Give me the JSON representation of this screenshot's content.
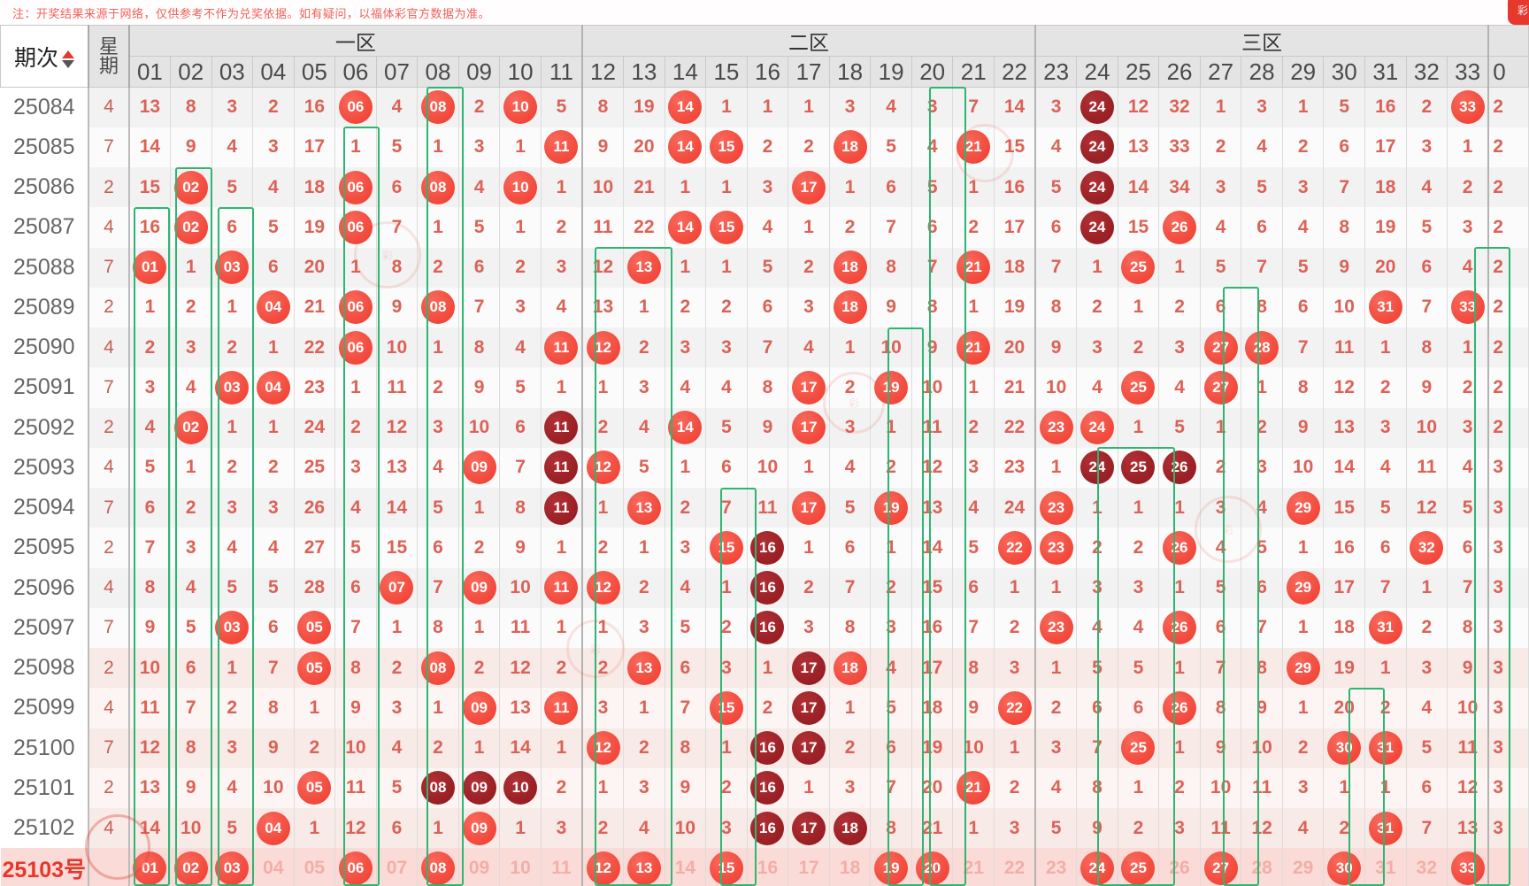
{
  "note": "注：开奖结果来源于网络，仅供参考不作为兑奖依据。如有疑问，以福体彩官方数据为准。",
  "header": {
    "issue_label": "期次",
    "week_label": "星期",
    "zones": [
      {
        "label": "一区",
        "cols": 11
      },
      {
        "label": "二区",
        "cols": 11
      },
      {
        "label": "三区",
        "cols": 11
      }
    ],
    "numbers": [
      "01",
      "02",
      "03",
      "04",
      "05",
      "06",
      "07",
      "08",
      "09",
      "10",
      "11",
      "12",
      "13",
      "14",
      "15",
      "16",
      "17",
      "18",
      "19",
      "20",
      "21",
      "22",
      "23",
      "24",
      "25",
      "26",
      "27",
      "28",
      "29",
      "30",
      "31",
      "32",
      "33"
    ],
    "partial_col_header": "0"
  },
  "cell_encoding": {
    "plain": "miss count (periods since number last drawn)",
    "B##": "drawn number shown as bright red ball",
    "D##": "drawn number shown as dark maroon ball (streak / consecutive run)",
    "P##": "pending-row red ball (tracked column)",
    "F##": "pending-row faded preview number"
  },
  "rows": [
    {
      "issue": "25084",
      "week": "4",
      "cells": [
        "13",
        "8",
        "3",
        "2",
        "16",
        "B06",
        "4",
        "B08",
        "2",
        "B10",
        "5",
        "8",
        "19",
        "B14",
        "1",
        "1",
        "1",
        "3",
        "4",
        "3",
        "7",
        "14",
        "3",
        "D24",
        "12",
        "32",
        "1",
        "3",
        "1",
        "5",
        "16",
        "2",
        "B33"
      ],
      "extra": "2"
    },
    {
      "issue": "25085",
      "week": "7",
      "cells": [
        "14",
        "9",
        "4",
        "3",
        "17",
        "1",
        "5",
        "1",
        "3",
        "1",
        "B11",
        "9",
        "20",
        "B14",
        "B15",
        "2",
        "2",
        "B18",
        "5",
        "4",
        "B21",
        "15",
        "4",
        "D24",
        "13",
        "33",
        "2",
        "4",
        "2",
        "6",
        "17",
        "3",
        "1"
      ],
      "extra": "2"
    },
    {
      "issue": "25086",
      "week": "2",
      "cells": [
        "15",
        "B02",
        "5",
        "4",
        "18",
        "B06",
        "6",
        "B08",
        "4",
        "B10",
        "1",
        "10",
        "21",
        "1",
        "1",
        "3",
        "B17",
        "1",
        "6",
        "5",
        "1",
        "16",
        "5",
        "D24",
        "14",
        "34",
        "3",
        "5",
        "3",
        "7",
        "18",
        "4",
        "2"
      ],
      "extra": "2"
    },
    {
      "issue": "25087",
      "week": "4",
      "cells": [
        "16",
        "B02",
        "6",
        "5",
        "19",
        "B06",
        "7",
        "1",
        "5",
        "1",
        "2",
        "11",
        "22",
        "B14",
        "B15",
        "4",
        "1",
        "2",
        "7",
        "6",
        "2",
        "17",
        "6",
        "D24",
        "15",
        "B26",
        "4",
        "6",
        "4",
        "8",
        "19",
        "5",
        "3"
      ],
      "extra": "2"
    },
    {
      "issue": "25088",
      "week": "7",
      "cells": [
        "B01",
        "1",
        "B03",
        "6",
        "20",
        "1",
        "8",
        "2",
        "6",
        "2",
        "3",
        "12",
        "B13",
        "1",
        "1",
        "5",
        "2",
        "B18",
        "8",
        "7",
        "B21",
        "18",
        "7",
        "1",
        "B25",
        "1",
        "5",
        "7",
        "5",
        "9",
        "20",
        "6",
        "4"
      ],
      "extra": "2"
    },
    {
      "issue": "25089",
      "week": "2",
      "cells": [
        "1",
        "2",
        "1",
        "B04",
        "21",
        "B06",
        "9",
        "B08",
        "7",
        "3",
        "4",
        "13",
        "1",
        "2",
        "2",
        "6",
        "3",
        "B18",
        "9",
        "8",
        "1",
        "19",
        "8",
        "2",
        "1",
        "2",
        "6",
        "8",
        "6",
        "10",
        "B31",
        "7",
        "B33"
      ],
      "extra": "2"
    },
    {
      "issue": "25090",
      "week": "4",
      "cells": [
        "2",
        "3",
        "2",
        "1",
        "22",
        "B06",
        "10",
        "1",
        "8",
        "4",
        "B11",
        "B12",
        "2",
        "3",
        "3",
        "7",
        "4",
        "1",
        "10",
        "9",
        "B21",
        "20",
        "9",
        "3",
        "2",
        "3",
        "B27",
        "B28",
        "7",
        "11",
        "1",
        "8",
        "1"
      ],
      "extra": "2"
    },
    {
      "issue": "25091",
      "week": "7",
      "cells": [
        "3",
        "4",
        "B03",
        "B04",
        "23",
        "1",
        "11",
        "2",
        "9",
        "5",
        "1",
        "1",
        "3",
        "4",
        "4",
        "8",
        "B17",
        "2",
        "B19",
        "10",
        "1",
        "21",
        "10",
        "4",
        "B25",
        "4",
        "B27",
        "1",
        "8",
        "12",
        "2",
        "9",
        "2"
      ],
      "extra": "2"
    },
    {
      "issue": "25092",
      "week": "2",
      "cells": [
        "4",
        "B02",
        "1",
        "1",
        "24",
        "2",
        "12",
        "3",
        "10",
        "6",
        "D11",
        "2",
        "4",
        "B14",
        "5",
        "9",
        "B17",
        "3",
        "1",
        "11",
        "2",
        "22",
        "B23",
        "B24",
        "1",
        "5",
        "1",
        "2",
        "9",
        "13",
        "3",
        "10",
        "3"
      ],
      "extra": "2"
    },
    {
      "issue": "25093",
      "week": "4",
      "cells": [
        "5",
        "1",
        "2",
        "2",
        "25",
        "3",
        "13",
        "4",
        "B09",
        "7",
        "D11",
        "B12",
        "5",
        "1",
        "6",
        "10",
        "1",
        "4",
        "2",
        "12",
        "3",
        "23",
        "1",
        "D24",
        "D25",
        "D26",
        "2",
        "3",
        "10",
        "14",
        "4",
        "11",
        "4"
      ],
      "extra": "3"
    },
    {
      "issue": "25094",
      "week": "7",
      "cells": [
        "6",
        "2",
        "3",
        "3",
        "26",
        "4",
        "14",
        "5",
        "1",
        "8",
        "D11",
        "1",
        "B13",
        "2",
        "7",
        "11",
        "B17",
        "5",
        "B19",
        "13",
        "4",
        "24",
        "B23",
        "1",
        "1",
        "1",
        "3",
        "4",
        "B29",
        "15",
        "5",
        "12",
        "5"
      ],
      "extra": "3"
    },
    {
      "issue": "25095",
      "week": "2",
      "cells": [
        "7",
        "3",
        "4",
        "4",
        "27",
        "5",
        "15",
        "6",
        "2",
        "9",
        "1",
        "2",
        "1",
        "3",
        "B15",
        "D16",
        "1",
        "6",
        "1",
        "14",
        "5",
        "B22",
        "B23",
        "2",
        "2",
        "B26",
        "4",
        "5",
        "1",
        "16",
        "6",
        "B32",
        "6"
      ],
      "extra": "3"
    },
    {
      "issue": "25096",
      "week": "4",
      "cells": [
        "8",
        "4",
        "5",
        "5",
        "28",
        "6",
        "B07",
        "7",
        "B09",
        "10",
        "B11",
        "B12",
        "2",
        "4",
        "1",
        "D16",
        "2",
        "7",
        "2",
        "15",
        "6",
        "1",
        "1",
        "3",
        "3",
        "1",
        "5",
        "6",
        "B29",
        "17",
        "7",
        "1",
        "7"
      ],
      "extra": "3"
    },
    {
      "issue": "25097",
      "week": "7",
      "cells": [
        "9",
        "5",
        "B03",
        "6",
        "B05",
        "7",
        "1",
        "8",
        "1",
        "11",
        "1",
        "1",
        "3",
        "5",
        "2",
        "D16",
        "3",
        "8",
        "3",
        "16",
        "7",
        "2",
        "B23",
        "4",
        "4",
        "B26",
        "6",
        "7",
        "1",
        "18",
        "B31",
        "2",
        "8"
      ],
      "extra": "3"
    },
    {
      "issue": "25098",
      "week": "2",
      "cells": [
        "10",
        "6",
        "1",
        "7",
        "B05",
        "8",
        "2",
        "B08",
        "2",
        "12",
        "2",
        "2",
        "B13",
        "6",
        "3",
        "1",
        "D17",
        "B18",
        "4",
        "17",
        "8",
        "3",
        "1",
        "5",
        "5",
        "1",
        "7",
        "8",
        "B29",
        "19",
        "1",
        "3",
        "9"
      ],
      "extra": "3"
    },
    {
      "issue": "25099",
      "week": "4",
      "cells": [
        "11",
        "7",
        "2",
        "8",
        "1",
        "9",
        "3",
        "1",
        "B09",
        "13",
        "B11",
        "3",
        "1",
        "7",
        "B15",
        "2",
        "D17",
        "1",
        "5",
        "18",
        "9",
        "B22",
        "2",
        "6",
        "6",
        "B26",
        "8",
        "9",
        "1",
        "20",
        "2",
        "4",
        "10"
      ],
      "extra": "3"
    },
    {
      "issue": "25100",
      "week": "7",
      "cells": [
        "12",
        "8",
        "3",
        "9",
        "2",
        "10",
        "4",
        "2",
        "1",
        "14",
        "1",
        "B12",
        "2",
        "8",
        "1",
        "D16",
        "D17",
        "2",
        "6",
        "19",
        "10",
        "1",
        "3",
        "7",
        "B25",
        "1",
        "9",
        "10",
        "2",
        "B30",
        "B31",
        "5",
        "11"
      ],
      "extra": "3"
    },
    {
      "issue": "25101",
      "week": "2",
      "cells": [
        "13",
        "9",
        "4",
        "10",
        "B05",
        "11",
        "5",
        "D08",
        "D09",
        "D10",
        "2",
        "1",
        "3",
        "9",
        "2",
        "D16",
        "1",
        "3",
        "7",
        "20",
        "B21",
        "2",
        "4",
        "8",
        "1",
        "2",
        "10",
        "11",
        "3",
        "1",
        "1",
        "6",
        "12"
      ],
      "extra": "3"
    },
    {
      "issue": "25102",
      "week": "4",
      "cells": [
        "14",
        "10",
        "5",
        "B04",
        "1",
        "12",
        "6",
        "1",
        "B09",
        "1",
        "3",
        "2",
        "4",
        "10",
        "3",
        "D16",
        "D17",
        "D18",
        "8",
        "21",
        "1",
        "3",
        "5",
        "9",
        "2",
        "3",
        "11",
        "12",
        "4",
        "2",
        "B31",
        "7",
        "13"
      ],
      "extra": "3"
    }
  ],
  "pending_row": {
    "issue": "25103号",
    "week": "",
    "cells": [
      "P01",
      "P02",
      "P03",
      "F04",
      "F05",
      "P06",
      "F07",
      "P08",
      "F09",
      "F10",
      "F11",
      "P12",
      "P13",
      "F14",
      "P15",
      "F16",
      "F17",
      "F18",
      "P19",
      "P20",
      "F21",
      "F22",
      "F23",
      "P24",
      "P25",
      "F26",
      "P27",
      "F28",
      "F29",
      "P30",
      "F31",
      "F32",
      "P33"
    ],
    "extra": ""
  },
  "highlight_boxes": [
    {
      "col": 8,
      "span": 1,
      "from_issue": "25084"
    },
    {
      "col": 20,
      "span": 1,
      "from_issue": "25084"
    },
    {
      "col": 6,
      "span": 1,
      "from_issue": "25085"
    },
    {
      "col": 2,
      "span": 1,
      "from_issue": "25086"
    },
    {
      "col": 1,
      "span": 1,
      "from_issue": "25087"
    },
    {
      "col": 3,
      "span": 1,
      "from_issue": "25087"
    },
    {
      "col": 12,
      "span": 2,
      "from_issue": "25088"
    },
    {
      "col": 33,
      "span": 1,
      "from_issue": "25088"
    },
    {
      "col": 27,
      "span": 1,
      "from_issue": "25089"
    },
    {
      "col": 19,
      "span": 1,
      "from_issue": "25090"
    },
    {
      "col": 24,
      "span": 2,
      "from_issue": "25093"
    },
    {
      "col": 15,
      "span": 1,
      "from_issue": "25094"
    },
    {
      "col": 30,
      "span": 1,
      "from_issue": "25099"
    }
  ],
  "colors": {
    "miss_text": "#db6257",
    "ball_bright": "#f14a3e",
    "ball_dark": "#9c2026",
    "highlight_box": "#2db672",
    "pending_row_bg": "#fadbd7",
    "faded_text": "#f2aea7",
    "stripe_even": "#f2f2f2",
    "stripe_odd": "#fbfbfb",
    "stripe_pink_even": "#f8eae7",
    "stripe_pink_odd": "#fdf5f3",
    "header_bg": "#e4e4e4",
    "note_text": "#f06158",
    "pending_issue_text": "#e7372b"
  }
}
